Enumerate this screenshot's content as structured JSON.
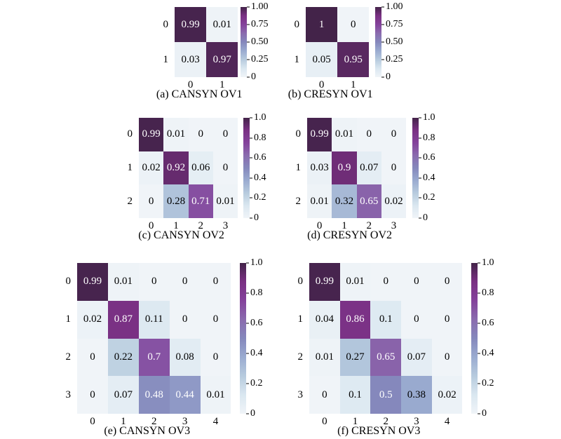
{
  "colormap": {
    "name": "BuPu-like",
    "stops": [
      {
        "t": 0.0,
        "color": "#f0f4f8"
      },
      {
        "t": 0.125,
        "color": "#dae7f0"
      },
      {
        "t": 0.25,
        "color": "#b7cbde"
      },
      {
        "t": 0.375,
        "color": "#9aabd0"
      },
      {
        "t": 0.5,
        "color": "#8588bc"
      },
      {
        "t": 0.625,
        "color": "#8a6bae"
      },
      {
        "t": 0.75,
        "color": "#84429b"
      },
      {
        "t": 0.875,
        "color": "#7a3083"
      },
      {
        "t": 1.0,
        "color": "#432349"
      }
    ],
    "text_threshold": 0.41,
    "light_text": "#ffffff",
    "dark_text": "#000000"
  },
  "chart_data": [
    {
      "type": "heatmap",
      "title": "(a) CANSYN OV1",
      "x_ticks": [
        "0",
        "1"
      ],
      "y_ticks": [
        "0",
        "1"
      ],
      "values": [
        [
          0.99,
          0.01
        ],
        [
          0.03,
          0.97
        ]
      ],
      "labels": [
        [
          "0.99",
          "0.01"
        ],
        [
          "0.03",
          "0.97"
        ]
      ],
      "colorbar_ticks": [
        "1.00",
        "0.75",
        "0.50",
        "0.25",
        "0"
      ],
      "vmin": 0,
      "vmax": 1
    },
    {
      "type": "heatmap",
      "title": "(b) CRESYN OV1",
      "x_ticks": [
        "0",
        "1"
      ],
      "y_ticks": [
        "0",
        "1"
      ],
      "values": [
        [
          1,
          0
        ],
        [
          0.05,
          0.95
        ]
      ],
      "labels": [
        [
          "1",
          "0"
        ],
        [
          "0.05",
          "0.95"
        ]
      ],
      "colorbar_ticks": [
        "1.00",
        "0.75",
        "0.50",
        "0.25",
        "0"
      ],
      "vmin": 0,
      "vmax": 1
    },
    {
      "type": "heatmap",
      "title": "(c) CANSYN OV2",
      "x_ticks": [
        "0",
        "1",
        "2",
        "3"
      ],
      "y_ticks": [
        "0",
        "1",
        "2"
      ],
      "values": [
        [
          0.99,
          0.01,
          0,
          0
        ],
        [
          0.02,
          0.92,
          0.06,
          0
        ],
        [
          0,
          0.28,
          0.71,
          0.01
        ]
      ],
      "labels": [
        [
          "0.99",
          "0.01",
          "0",
          "0"
        ],
        [
          "0.02",
          "0.92",
          "0.06",
          "0"
        ],
        [
          "0",
          "0.28",
          "0.71",
          "0.01"
        ]
      ],
      "colorbar_ticks": [
        "1.0",
        "0.8",
        "0.6",
        "0.4",
        "0.2",
        "0"
      ],
      "vmin": 0,
      "vmax": 1
    },
    {
      "type": "heatmap",
      "title": "(d) CRESYN OV2",
      "x_ticks": [
        "0",
        "1",
        "2",
        "3"
      ],
      "y_ticks": [
        "0",
        "1",
        "2"
      ],
      "values": [
        [
          0.99,
          0.01,
          0,
          0
        ],
        [
          0.03,
          0.9,
          0.07,
          0
        ],
        [
          0.01,
          0.32,
          0.65,
          0.02
        ]
      ],
      "labels": [
        [
          "0.99",
          "0.01",
          "0",
          "0"
        ],
        [
          "0.03",
          "0.9",
          "0.07",
          "0"
        ],
        [
          "0.01",
          "0.32",
          "0.65",
          "0.02"
        ]
      ],
      "colorbar_ticks": [
        "1.0",
        "0.8",
        "0.6",
        "0.4",
        "0.2",
        "0"
      ],
      "vmin": 0,
      "vmax": 1
    },
    {
      "type": "heatmap",
      "title": "(e) CANSYN OV3",
      "x_ticks": [
        "0",
        "1",
        "2",
        "3",
        "4"
      ],
      "y_ticks": [
        "0",
        "1",
        "2",
        "3"
      ],
      "values": [
        [
          0.99,
          0.01,
          0,
          0,
          0
        ],
        [
          0.02,
          0.87,
          0.11,
          0,
          0
        ],
        [
          0,
          0.22,
          0.7,
          0.08,
          0
        ],
        [
          0,
          0.07,
          0.48,
          0.44,
          0.01
        ]
      ],
      "labels": [
        [
          "0.99",
          "0.01",
          "0",
          "0",
          "0"
        ],
        [
          "0.02",
          "0.87",
          "0.11",
          "0",
          "0"
        ],
        [
          "0",
          "0.22",
          "0.7",
          "0.08",
          "0"
        ],
        [
          "0",
          "0.07",
          "0.48",
          "0.44",
          "0.01"
        ]
      ],
      "colorbar_ticks": [
        "1.0",
        "0.8",
        "0.6",
        "0.4",
        "0.2",
        "0"
      ],
      "vmin": 0,
      "vmax": 1
    },
    {
      "type": "heatmap",
      "title": "(f) CRESYN OV3",
      "x_ticks": [
        "0",
        "1",
        "2",
        "3",
        "4"
      ],
      "y_ticks": [
        "0",
        "1",
        "2",
        "3"
      ],
      "values": [
        [
          0.99,
          0.01,
          0,
          0,
          0
        ],
        [
          0.04,
          0.86,
          0.1,
          0,
          0
        ],
        [
          0.01,
          0.27,
          0.65,
          0.07,
          0
        ],
        [
          0,
          0.1,
          0.5,
          0.38,
          0.02
        ]
      ],
      "labels": [
        [
          "0.99",
          "0.01",
          "0",
          "0",
          "0"
        ],
        [
          "0.04",
          "0.86",
          "0.1",
          "0",
          "0"
        ],
        [
          "0.01",
          "0.27",
          "0.65",
          "0.07",
          "0"
        ],
        [
          "0",
          "0.1",
          "0.5",
          "0.38",
          "0.02"
        ]
      ],
      "colorbar_ticks": [
        "1.0",
        "0.8",
        "0.6",
        "0.4",
        "0.2",
        "0"
      ],
      "vmin": 0,
      "vmax": 1
    }
  ]
}
